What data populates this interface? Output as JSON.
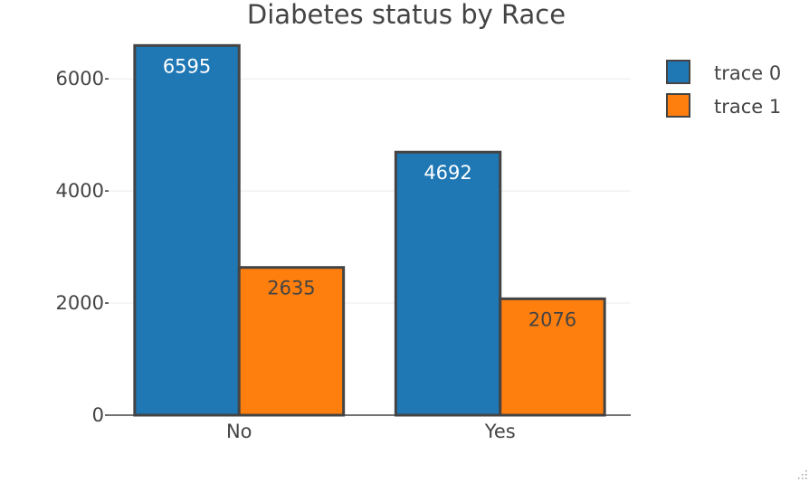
{
  "chart_data": {
    "type": "bar",
    "title": "Diabetes status by Race",
    "categories": [
      "No",
      "Yes"
    ],
    "series": [
      {
        "name": "trace 0",
        "color": "#1f77b4",
        "label_color": "#ffffff",
        "values": [
          6595,
          4692
        ]
      },
      {
        "name": "trace 1",
        "color": "#ff7f0e",
        "label_color": "#444444",
        "values": [
          2635,
          2076
        ]
      }
    ],
    "ylim": [
      0,
      6600
    ],
    "yticks": [
      0,
      2000,
      4000,
      6000
    ],
    "grid": true,
    "legend_position": "top-right",
    "bar_outline_color": "#444444"
  }
}
